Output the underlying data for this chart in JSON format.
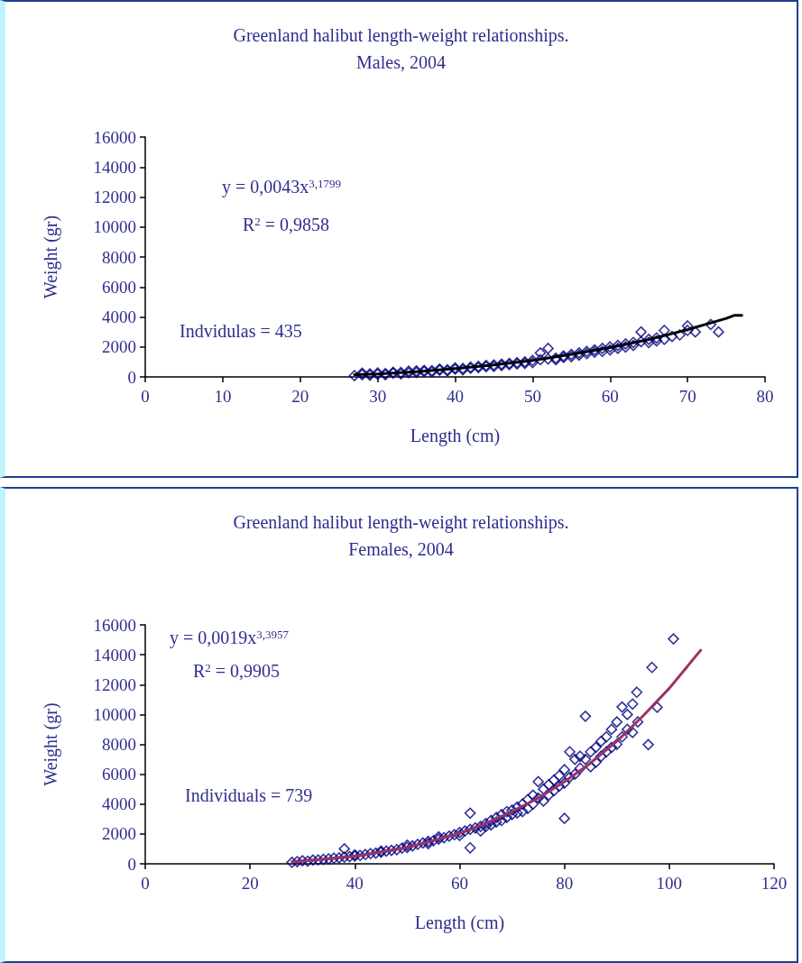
{
  "chart_data": [
    {
      "type": "scatter",
      "title": "Greenland halibut length-weight relationships.",
      "subtitle": "Males, 2004",
      "xlabel": "Length (cm)",
      "ylabel": "Weight (gr)",
      "annotations": [
        "y = 0,0043x$^{3,1799}$",
        "R$^{2}$ = 0,9858",
        "Indvidulas = 435"
      ],
      "xlim": [
        0,
        80
      ],
      "xticks": [
        0,
        10,
        20,
        30,
        40,
        50,
        60,
        70,
        80
      ],
      "ylim": [
        0,
        16000
      ],
      "yticks": [
        0,
        2000,
        4000,
        6000,
        8000,
        10000,
        12000,
        14000,
        16000
      ],
      "grid": false,
      "marker": "diamond",
      "series": [
        {
          "type": "scatter",
          "color": "#000080",
          "x": [
            27,
            28,
            28,
            29,
            29,
            30,
            30,
            31,
            31,
            32,
            32,
            33,
            33,
            34,
            34,
            35,
            35,
            36,
            36,
            37,
            37,
            38,
            38,
            39,
            39,
            40,
            40,
            41,
            41,
            42,
            42,
            43,
            43,
            44,
            44,
            45,
            45,
            46,
            46,
            47,
            47,
            48,
            48,
            49,
            49,
            50,
            50,
            51,
            51,
            52,
            52,
            53,
            53,
            54,
            54,
            55,
            55,
            56,
            56,
            57,
            57,
            58,
            58,
            59,
            59,
            60,
            60,
            61,
            61,
            62,
            62,
            63,
            63,
            64,
            64,
            65,
            65,
            66,
            66,
            67,
            67,
            68,
            69,
            70,
            70,
            71,
            73,
            74
          ],
          "values": [
            80,
            150,
            250,
            120,
            200,
            180,
            260,
            220,
            150,
            250,
            310,
            200,
            300,
            280,
            380,
            300,
            400,
            350,
            430,
            420,
            330,
            450,
            520,
            480,
            400,
            520,
            600,
            560,
            480,
            650,
            580,
            700,
            620,
            760,
            680,
            800,
            700,
            850,
            760,
            900,
            820,
            950,
            870,
            1000,
            900,
            1100,
            950,
            1150,
            1600,
            1200,
            1900,
            1250,
            1150,
            1400,
            1300,
            1500,
            1350,
            1600,
            1450,
            1700,
            1550,
            1800,
            1650,
            1900,
            1700,
            2000,
            1800,
            2100,
            1900,
            2200,
            2000,
            2300,
            2100,
            3000,
            2350,
            2500,
            2300,
            2600,
            2400,
            3100,
            2500,
            2700,
            2800,
            3400,
            3100,
            3000,
            3500,
            3000
          ]
        },
        {
          "type": "line",
          "color": "#000000",
          "marker": "none",
          "x": [
            27,
            30,
            35,
            40,
            45,
            50,
            55,
            60,
            65,
            70,
            75,
            76,
            77
          ],
          "values": [
            150,
            200,
            350,
            550,
            800,
            1100,
            1500,
            1950,
            2500,
            3150,
            3900,
            4100,
            4100
          ]
        }
      ]
    },
    {
      "type": "scatter",
      "title": "Greenland halibut length-weight relationships.",
      "subtitle": "Females, 2004",
      "xlabel": "Length (cm)",
      "ylabel": "Weight (gr)",
      "annotations": [
        "y = 0,0019x$^{3,3957}$",
        "R$^{2}$ = 0,9905",
        "Individuals = 739"
      ],
      "xlim": [
        0,
        120
      ],
      "xticks": [
        0,
        20,
        40,
        60,
        80,
        100,
        120
      ],
      "ylim": [
        0,
        16000
      ],
      "yticks": [
        0,
        2000,
        4000,
        6000,
        8000,
        10000,
        12000,
        14000,
        16000
      ],
      "grid": false,
      "marker": "diamond",
      "series": [
        {
          "type": "scatter",
          "color": "#000080",
          "x": [
            28,
            29,
            30,
            31,
            32,
            33,
            34,
            35,
            36,
            37,
            38,
            38,
            39,
            40,
            40,
            41,
            42,
            43,
            44,
            45,
            45,
            46,
            47,
            48,
            49,
            50,
            50,
            51,
            52,
            53,
            54,
            54,
            55,
            56,
            56,
            57,
            58,
            59,
            60,
            60,
            61,
            62,
            62,
            62,
            63,
            64,
            64,
            65,
            65,
            66,
            66,
            67,
            67,
            68,
            68,
            69,
            69,
            70,
            70,
            71,
            71,
            72,
            72,
            73,
            73,
            74,
            74,
            75,
            75,
            76,
            76,
            77,
            77,
            78,
            78,
            79,
            79,
            80,
            80,
            80,
            81,
            81,
            82,
            82,
            83,
            83,
            84,
            84,
            85,
            85,
            86,
            86,
            87,
            87,
            88,
            88,
            89,
            89,
            90,
            90,
            91,
            91,
            92,
            92,
            93,
            93,
            93.8,
            94,
            96,
            96.7,
            97.7,
            100.8
          ],
          "values": [
            100,
            150,
            200,
            180,
            250,
            260,
            300,
            330,
            380,
            400,
            1000,
            450,
            480,
            520,
            600,
            560,
            620,
            680,
            720,
            780,
            850,
            850,
            900,
            950,
            1050,
            1100,
            1250,
            1200,
            1300,
            1400,
            1500,
            1350,
            1550,
            1650,
            1800,
            1750,
            1850,
            1950,
            2100,
            1900,
            2200,
            1070,
            3390,
            2300,
            2400,
            2500,
            2200,
            2700,
            2500,
            2900,
            2600,
            3100,
            2800,
            3300,
            2900,
            3500,
            3100,
            3600,
            3300,
            3800,
            3400,
            4000,
            3500,
            4300,
            3700,
            4600,
            4000,
            5500,
            4400,
            5000,
            4200,
            5300,
            4600,
            5600,
            4900,
            5900,
            5200,
            3040,
            6300,
            5400,
            7500,
            5800,
            7000,
            6000,
            7200,
            6400,
            9880,
            7000,
            7500,
            6500,
            7800,
            6800,
            8200,
            7200,
            8500,
            7500,
            9000,
            7800,
            9500,
            8000,
            10500,
            8500,
            10000,
            9000,
            10700,
            8800,
            11490,
            9500,
            7980,
            13150,
            10480,
            15060
          ]
        },
        {
          "type": "line",
          "color": "#993366",
          "marker": "none",
          "x": [
            28,
            30,
            35,
            40,
            45,
            50,
            55,
            60,
            65,
            70,
            75,
            80,
            85,
            90,
            95,
            100,
            106
          ],
          "values": [
            150,
            200,
            350,
            500,
            800,
            1100,
            1550,
            2050,
            2700,
            3500,
            4400,
            5500,
            6750,
            8200,
            9900,
            11750,
            14300
          ]
        }
      ]
    }
  ]
}
